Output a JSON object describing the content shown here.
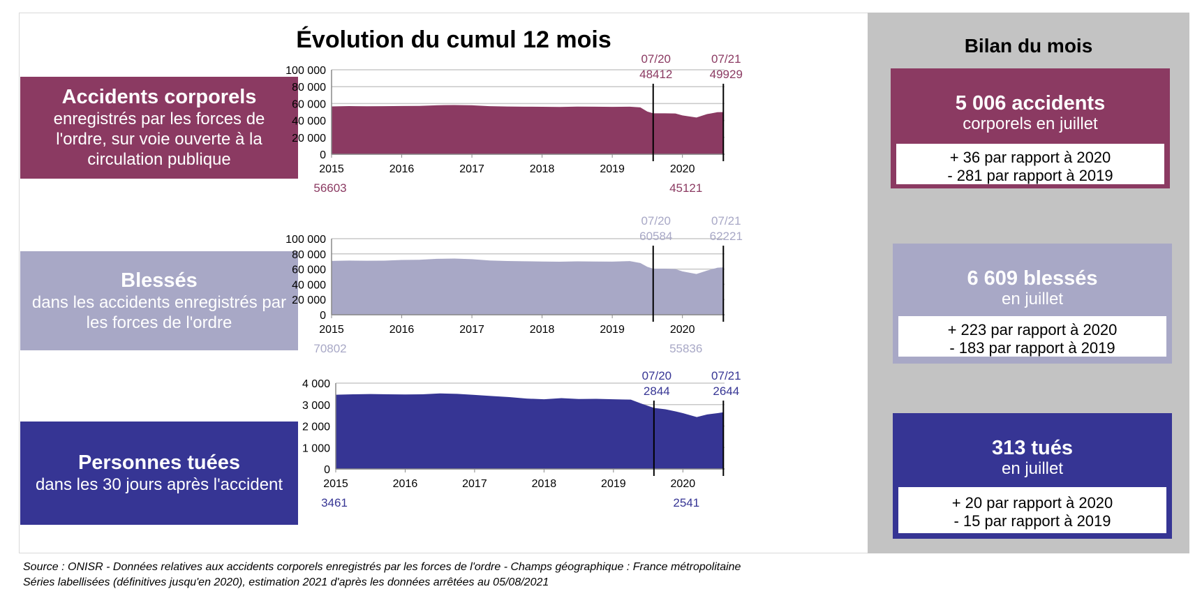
{
  "title": "Évolution du cumul 12 mois",
  "panels": [
    {
      "label_title": "Accidents corporels",
      "label_sub": "enregistrés par les forces de l'ordre, sur voie ouverte à la circulation publique",
      "color": "#8b3a62",
      "marker_color": "#8b3a62"
    },
    {
      "label_title": "Blessés",
      "label_sub": "dans les accidents enregistrés par les forces de l'ordre",
      "color": "#a8a8c6",
      "marker_color": "#a8a8c6"
    },
    {
      "label_title": "Personnes tuées",
      "label_sub": "dans les 30 jours après l'accident",
      "color": "#363594",
      "marker_color": "#363594"
    }
  ],
  "chart_data": [
    {
      "type": "area",
      "title": "",
      "ylim": [
        0,
        100000
      ],
      "y_ticks": [
        "100 000",
        "80 000",
        "60 000",
        "40 000",
        "20 000",
        "0"
      ],
      "x_ticks": [
        "2015",
        "2016",
        "2017",
        "2018",
        "2019",
        "2020"
      ],
      "grid": true,
      "x_start": 2015.0,
      "x_end": 2020.583,
      "points": [
        [
          2015.0,
          56603
        ],
        [
          2015.25,
          57000
        ],
        [
          2015.5,
          56800
        ],
        [
          2015.75,
          56900
        ],
        [
          2016.0,
          57100
        ],
        [
          2016.25,
          57200
        ],
        [
          2016.5,
          58000
        ],
        [
          2016.75,
          58300
        ],
        [
          2017.0,
          58000
        ],
        [
          2017.25,
          56900
        ],
        [
          2017.5,
          56500
        ],
        [
          2017.75,
          56300
        ],
        [
          2018.0,
          56200
        ],
        [
          2018.25,
          56000
        ],
        [
          2018.5,
          56400
        ],
        [
          2018.75,
          56300
        ],
        [
          2019.0,
          56100
        ],
        [
          2019.25,
          56300
        ],
        [
          2019.4,
          55500
        ],
        [
          2019.5,
          50500
        ],
        [
          2019.583,
          48412
        ],
        [
          2019.75,
          48500
        ],
        [
          2019.9,
          48200
        ],
        [
          2020.0,
          46000
        ],
        [
          2020.2,
          43500
        ],
        [
          2020.35,
          47500
        ],
        [
          2020.5,
          49800
        ],
        [
          2020.583,
          49929
        ]
      ],
      "annotations": {
        "start_value": "56603",
        "min_value": "45121",
        "markers": [
          {
            "x": 2019.583,
            "label": "07/20",
            "value": "48412"
          },
          {
            "x": 2020.583,
            "label": "07/21",
            "value": "49929"
          }
        ]
      }
    },
    {
      "type": "area",
      "title": "",
      "ylim": [
        0,
        100000
      ],
      "y_ticks": [
        "100 000",
        "80 000",
        "60 000",
        "40 000",
        "20 000",
        "0"
      ],
      "x_ticks": [
        "2015",
        "2016",
        "2017",
        "2018",
        "2019",
        "2020"
      ],
      "grid": true,
      "x_start": 2015.0,
      "x_end": 2020.583,
      "points": [
        [
          2015.0,
          70802
        ],
        [
          2015.25,
          71200
        ],
        [
          2015.5,
          71000
        ],
        [
          2015.75,
          71100
        ],
        [
          2016.0,
          72000
        ],
        [
          2016.25,
          72300
        ],
        [
          2016.5,
          73500
        ],
        [
          2016.75,
          73800
        ],
        [
          2017.0,
          73000
        ],
        [
          2017.25,
          71300
        ],
        [
          2017.5,
          70600
        ],
        [
          2017.75,
          70300
        ],
        [
          2018.0,
          70000
        ],
        [
          2018.25,
          69700
        ],
        [
          2018.5,
          70200
        ],
        [
          2018.75,
          70000
        ],
        [
          2019.0,
          69800
        ],
        [
          2019.25,
          70500
        ],
        [
          2019.4,
          68000
        ],
        [
          2019.5,
          63000
        ],
        [
          2019.583,
          60584
        ],
        [
          2019.75,
          60500
        ],
        [
          2019.9,
          60000
        ],
        [
          2020.0,
          57000
        ],
        [
          2020.2,
          53500
        ],
        [
          2020.35,
          58000
        ],
        [
          2020.5,
          61800
        ],
        [
          2020.583,
          62221
        ]
      ],
      "annotations": {
        "start_value": "70802",
        "min_value": "55836",
        "markers": [
          {
            "x": 2019.583,
            "label": "07/20",
            "value": "60584"
          },
          {
            "x": 2020.583,
            "label": "07/21",
            "value": "62221"
          }
        ]
      }
    },
    {
      "type": "area",
      "title": "",
      "ylim": [
        0,
        4000
      ],
      "y_ticks": [
        "4 000",
        "3 000",
        "2 000",
        "1 000",
        "0"
      ],
      "x_ticks": [
        "2015",
        "2016",
        "2017",
        "2018",
        "2019",
        "2020"
      ],
      "grid": true,
      "x_start": 2015.0,
      "x_end": 2020.583,
      "points": [
        [
          2015.0,
          3461
        ],
        [
          2015.25,
          3480
        ],
        [
          2015.5,
          3490
        ],
        [
          2015.75,
          3480
        ],
        [
          2016.0,
          3470
        ],
        [
          2016.25,
          3480
        ],
        [
          2016.5,
          3520
        ],
        [
          2016.75,
          3500
        ],
        [
          2017.0,
          3450
        ],
        [
          2017.25,
          3400
        ],
        [
          2017.5,
          3350
        ],
        [
          2017.75,
          3280
        ],
        [
          2018.0,
          3250
        ],
        [
          2018.25,
          3300
        ],
        [
          2018.5,
          3260
        ],
        [
          2018.75,
          3270
        ],
        [
          2019.0,
          3250
        ],
        [
          2019.25,
          3230
        ],
        [
          2019.4,
          3050
        ],
        [
          2019.583,
          2844
        ],
        [
          2019.75,
          2780
        ],
        [
          2019.9,
          2680
        ],
        [
          2020.0,
          2600
        ],
        [
          2020.2,
          2420
        ],
        [
          2020.35,
          2541
        ],
        [
          2020.5,
          2600
        ],
        [
          2020.583,
          2644
        ]
      ],
      "annotations": {
        "start_value": "3461",
        "min_value": "2541",
        "markers": [
          {
            "x": 2019.583,
            "label": "07/20",
            "value": "2844"
          },
          {
            "x": 2020.583,
            "label": "07/21",
            "value": "2644"
          }
        ]
      }
    }
  ],
  "sidebar": {
    "title": "Bilan du mois",
    "cards": [
      {
        "headline": "5 006 accidents",
        "sub": "corporels en juillet",
        "line1": "+ 36 par rapport à 2020",
        "line2": "- 281 par rapport à 2019",
        "color": "#8b3a62"
      },
      {
        "headline": "6 609 blessés",
        "sub": "en juillet",
        "line1": "+ 223 par rapport à 2020",
        "line2": "- 183 par rapport à 2019",
        "color": "#a8a8c6"
      },
      {
        "headline": "313 tués",
        "sub": "en juillet",
        "line1": "+ 20 par rapport à 2020",
        "line2": "- 15 par rapport à 2019",
        "color": "#363594"
      }
    ]
  },
  "footer": {
    "line1": "Source : ONISR - Données relatives aux accidents corporels enregistrés par les forces de l'ordre - Champs géographique : France métropolitaine",
    "line2": "Séries labellisées (définitives jusqu'en 2020), estimation 2021 d'après les données arrêtées au 05/08/2021"
  }
}
